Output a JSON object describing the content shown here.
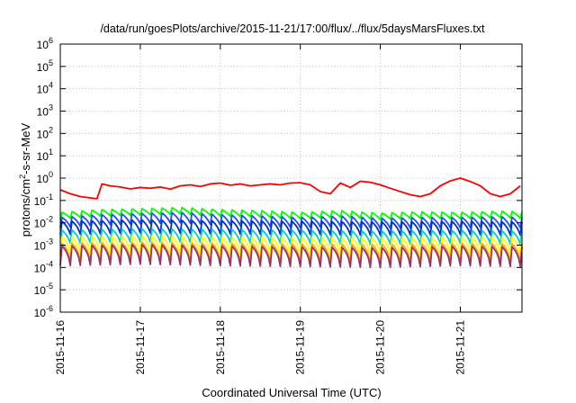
{
  "chart_data": {
    "type": "line",
    "title": "/data/run/goesPlots/archive/2015-11-21/17:00/flux/../flux/5daysMarsFluxes.txt",
    "xlabel": "Coordinated Universal Time (UTC)",
    "ylabel_main": "protons/cm",
    "ylabel_sup": "2",
    "ylabel_rest": "-s-sr-MeV",
    "xlim": [
      "2015-11-16T00:00",
      "2015-11-21T18:30"
    ],
    "ylim": [
      1e-06,
      1000000.0
    ],
    "yscale": "log",
    "grid": true,
    "x_ticks": [
      "2015-11-16",
      "2015-11-17",
      "2015-11-18",
      "2015-11-19",
      "2015-11-20",
      "2015-11-21"
    ],
    "y_ticks": [
      {
        "base": "10",
        "exp": "-6",
        "value": 1e-06
      },
      {
        "base": "10",
        "exp": "-5",
        "value": 1e-05
      },
      {
        "base": "10",
        "exp": "-4",
        "value": 0.0001
      },
      {
        "base": "10",
        "exp": "-3",
        "value": 0.001
      },
      {
        "base": "10",
        "exp": "-2",
        "value": 0.01
      },
      {
        "base": "10",
        "exp": "-1",
        "value": 0.1
      },
      {
        "base": "10",
        "exp": "0",
        "value": 1
      },
      {
        "base": "10",
        "exp": "1",
        "value": 10
      },
      {
        "base": "10",
        "exp": "2",
        "value": 100
      },
      {
        "base": "10",
        "exp": "3",
        "value": 1000
      },
      {
        "base": "10",
        "exp": "4",
        "value": 10000
      },
      {
        "base": "10",
        "exp": "5",
        "value": 100000
      },
      {
        "base": "10",
        "exp": "6",
        "value": 1000000
      }
    ],
    "series": [
      {
        "color": "#ff0000",
        "x": [
          "2015-11-16T00:00",
          "2015-11-16T03:00",
          "2015-11-16T06:00",
          "2015-11-16T09:00",
          "2015-11-16T11:00",
          "2015-11-16T12:30",
          "2015-11-16T15:00",
          "2015-11-16T18:00",
          "2015-11-16T21:00",
          "2015-11-17T00:00",
          "2015-11-17T03:00",
          "2015-11-17T06:00",
          "2015-11-17T09:00",
          "2015-11-17T12:00",
          "2015-11-17T15:00",
          "2015-11-17T18:00",
          "2015-11-17T21:00",
          "2015-11-18T00:00",
          "2015-11-18T03:00",
          "2015-11-18T06:00",
          "2015-11-18T09:00",
          "2015-11-18T12:00",
          "2015-11-18T15:00",
          "2015-11-18T18:00",
          "2015-11-18T21:00",
          "2015-11-19T00:00",
          "2015-11-19T03:00",
          "2015-11-19T06:00",
          "2015-11-19T09:00",
          "2015-11-19T12:00",
          "2015-11-19T15:00",
          "2015-11-19T18:00",
          "2015-11-19T21:00",
          "2015-11-20T00:00",
          "2015-11-20T03:00",
          "2015-11-20T06:00",
          "2015-11-20T09:00",
          "2015-11-20T12:00",
          "2015-11-20T15:00",
          "2015-11-20T18:00",
          "2015-11-20T21:00",
          "2015-11-21T00:00",
          "2015-11-21T03:00",
          "2015-11-21T06:00",
          "2015-11-21T09:00",
          "2015-11-21T12:00",
          "2015-11-21T15:00",
          "2015-11-21T18:00"
        ],
        "y": [
          0.3,
          0.2,
          0.15,
          0.13,
          0.12,
          0.55,
          0.45,
          0.4,
          0.33,
          0.38,
          0.35,
          0.4,
          0.32,
          0.45,
          0.5,
          0.42,
          0.55,
          0.6,
          0.48,
          0.55,
          0.45,
          0.5,
          0.55,
          0.5,
          0.6,
          0.62,
          0.5,
          0.25,
          0.2,
          0.6,
          0.38,
          0.72,
          0.65,
          0.5,
          0.35,
          0.25,
          0.18,
          0.15,
          0.2,
          0.45,
          0.75,
          1.0,
          0.7,
          0.45,
          0.2,
          0.15,
          0.2,
          0.45
        ]
      },
      {
        "color": "#00ff00",
        "x": [
          "2015-11-16T00:00",
          "2015-11-16T12:00",
          "2015-11-17T00:00",
          "2015-11-17T12:00",
          "2015-11-18T00:00",
          "2015-11-18T12:00",
          "2015-11-19T00:00",
          "2015-11-19T12:00",
          "2015-11-20T00:00",
          "2015-11-20T12:00",
          "2015-11-21T00:00",
          "2015-11-21T12:00",
          "2015-11-21T18:00"
        ],
        "y": [
          0.015,
          0.02,
          0.022,
          0.025,
          0.02,
          0.018,
          0.015,
          0.018,
          0.014,
          0.016,
          0.015,
          0.017,
          0.016
        ],
        "sawtooth_ratio": 2.0
      },
      {
        "color": "#1f4fff",
        "x": [
          "2015-11-16T00:00",
          "2015-11-16T12:00",
          "2015-11-17T00:00",
          "2015-11-17T12:00",
          "2015-11-18T00:00",
          "2015-11-18T12:00",
          "2015-11-19T00:00",
          "2015-11-19T12:00",
          "2015-11-20T00:00",
          "2015-11-20T12:00",
          "2015-11-21T00:00",
          "2015-11-21T12:00",
          "2015-11-21T18:00"
        ],
        "y": [
          0.006,
          0.008,
          0.009,
          0.01,
          0.008,
          0.007,
          0.006,
          0.007,
          0.0055,
          0.006,
          0.006,
          0.0065,
          0.006
        ],
        "sawtooth_ratio": 3.0
      },
      {
        "color": "#0030c0",
        "x": [
          "2015-11-16T00:00",
          "2015-11-17T00:00",
          "2015-11-18T00:00",
          "2015-11-19T00:00",
          "2015-11-20T00:00",
          "2015-11-21T00:00",
          "2015-11-21T18:00"
        ],
        "y": [
          0.003,
          0.0035,
          0.0032,
          0.003,
          0.0028,
          0.003,
          0.0028
        ],
        "sawtooth_ratio": 4.0
      },
      {
        "color": "#00cccc",
        "x": [
          "2015-11-16T00:00",
          "2015-11-17T00:00",
          "2015-11-18T00:00",
          "2015-11-19T00:00",
          "2015-11-20T00:00",
          "2015-11-21T00:00",
          "2015-11-21T18:00"
        ],
        "y": [
          0.0012,
          0.0014,
          0.0013,
          0.0012,
          0.0011,
          0.0012,
          0.0011
        ],
        "sawtooth_ratio": 4.0
      },
      {
        "color": "#ffff00",
        "x": [
          "2015-11-16T00:00",
          "2015-11-17T00:00",
          "2015-11-18T00:00",
          "2015-11-19T00:00",
          "2015-11-20T00:00",
          "2015-11-21T00:00",
          "2015-11-21T18:00"
        ],
        "y": [
          0.0004,
          0.00045,
          0.0004,
          0.00038,
          0.00036,
          0.0004,
          0.00038
        ],
        "sawtooth_ratio": 6.0
      },
      {
        "color": "#ffa500",
        "x": [
          "2015-11-16T00:00",
          "2015-11-17T00:00",
          "2015-11-18T00:00",
          "2015-11-19T00:00",
          "2015-11-20T00:00",
          "2015-11-21T00:00",
          "2015-11-21T18:00"
        ],
        "y": [
          0.00018,
          0.0002,
          0.00018,
          0.00017,
          0.00016,
          0.00018,
          0.00017
        ],
        "sawtooth_ratio": 7.0
      },
      {
        "color": "#993366",
        "x": [
          "2015-11-16T00:00",
          "2015-11-17T00:00",
          "2015-11-18T00:00",
          "2015-11-19T00:00",
          "2015-11-20T00:00",
          "2015-11-21T00:00",
          "2015-11-21T18:00"
        ],
        "y": [
          0.00012,
          0.00014,
          0.00012,
          0.00011,
          0.0001,
          0.00012,
          0.00011
        ],
        "sawtooth_ratio": 8.0
      }
    ],
    "sawtooth_period_hours": 3
  }
}
